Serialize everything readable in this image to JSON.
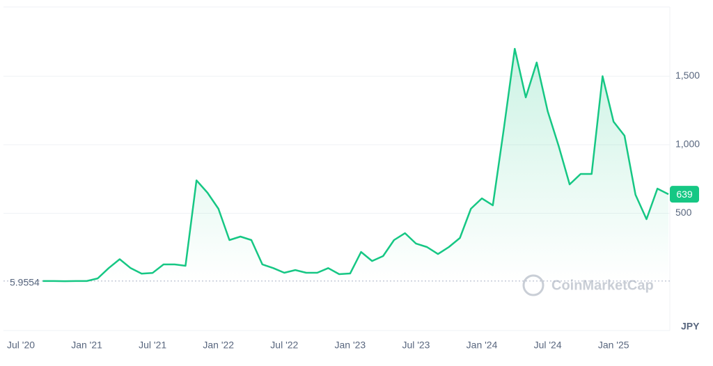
{
  "chart_data": {
    "type": "line",
    "x": [
      "2020-09",
      "2020-10",
      "2020-11",
      "2020-12",
      "2021-01",
      "2021-02",
      "2021-03",
      "2021-04",
      "2021-05",
      "2021-06",
      "2021-07",
      "2021-08",
      "2021-09",
      "2021-10",
      "2021-11",
      "2021-12",
      "2022-01",
      "2022-02",
      "2022-03",
      "2022-04",
      "2022-05",
      "2022-06",
      "2022-07",
      "2022-08",
      "2022-09",
      "2022-10",
      "2022-11",
      "2022-12",
      "2023-01",
      "2023-02",
      "2023-03",
      "2023-04",
      "2023-05",
      "2023-06",
      "2023-07",
      "2023-08",
      "2023-09",
      "2023-10",
      "2023-11",
      "2023-12",
      "2024-01",
      "2024-02",
      "2024-03",
      "2024-04",
      "2024-05",
      "2024-06",
      "2024-07",
      "2024-08",
      "2024-09",
      "2024-10",
      "2024-11",
      "2024-12",
      "2025-01",
      "2025-02",
      "2025-03",
      "2025-04",
      "2025-05",
      "2025-06"
    ],
    "series": [
      {
        "color": "#16c784",
        "values": [
          5.9554,
          6,
          5,
          6,
          6,
          25,
          100,
          165,
          100,
          60,
          65,
          127,
          127,
          117,
          740,
          650,
          533,
          305,
          330,
          305,
          127,
          100,
          66,
          86,
          66,
          66,
          100,
          56,
          61,
          218,
          152,
          188,
          305,
          355,
          279,
          254,
          203,
          254,
          320,
          533,
          609,
          558,
          1117,
          1700,
          1345,
          1600,
          1244,
          990,
          711,
          787,
          787,
          1500,
          1168,
          1066,
          635,
          457,
          680,
          639
        ]
      }
    ],
    "xlim": [
      "2020-07",
      "2025-06"
    ],
    "xticks": [
      {
        "value": "2020-07",
        "label": "Jul '20"
      },
      {
        "value": "2021-01",
        "label": "Jan '21"
      },
      {
        "value": "2021-07",
        "label": "Jul '21"
      },
      {
        "value": "2022-01",
        "label": "Jan '22"
      },
      {
        "value": "2022-07",
        "label": "Jul '22"
      },
      {
        "value": "2023-01",
        "label": "Jan '23"
      },
      {
        "value": "2023-07",
        "label": "Jul '23"
      },
      {
        "value": "2024-01",
        "label": "Jan '24"
      },
      {
        "value": "2024-07",
        "label": "Jul '24"
      },
      {
        "value": "2025-01",
        "label": "Jan '25"
      }
    ],
    "ylim": [
      -355,
      2005
    ],
    "yticks": [
      500,
      {
        "value": 1000,
        "label": "1,000"
      },
      {
        "value": 1500,
        "label": "1,500"
      }
    ],
    "ylabel": "JPY",
    "grid": true,
    "baseline": {
      "value": 5.9554,
      "label": "5.9554"
    },
    "last_price": 639,
    "watermark": "CoinMarketCap"
  }
}
